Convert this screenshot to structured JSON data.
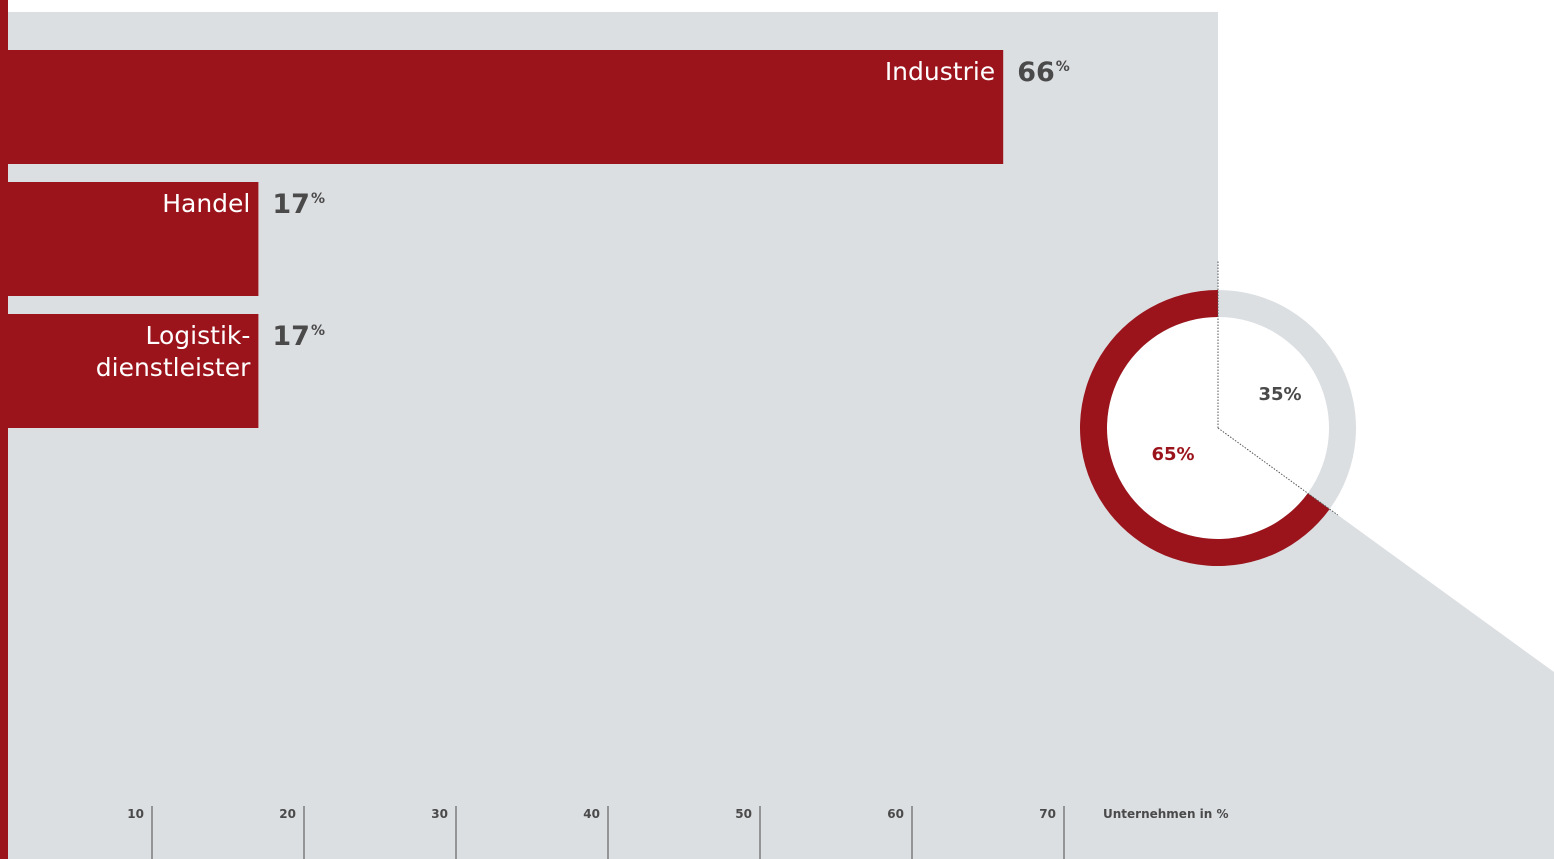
{
  "colors": {
    "bar": "#9b141c",
    "panel": "#dcdfe2",
    "value_text": "#4a4a4a",
    "donut_rest": "#dcdfe2",
    "donut_inner": "#ffffff"
  },
  "chart_data": [
    {
      "type": "bar",
      "orientation": "horizontal",
      "categories": [
        "Industrie",
        "Handel",
        "Logistikdienstleister"
      ],
      "category_lines": [
        [
          "Industrie"
        ],
        [
          "Handel"
        ],
        [
          "Logistik-",
          "dienstleister"
        ]
      ],
      "values": [
        66,
        17,
        17
      ],
      "value_labels": [
        "66",
        "17",
        "17"
      ],
      "value_unit": "%",
      "xlabel": "Unternehmen in %",
      "ylabel": "",
      "xlim": [
        0,
        80
      ],
      "ticks": [
        10,
        20,
        30,
        40,
        50,
        60,
        70
      ],
      "tick_labels": [
        "10",
        "20",
        "30",
        "40",
        "50",
        "60",
        "70"
      ],
      "grid": false
    },
    {
      "type": "pie",
      "donut": true,
      "slices": [
        {
          "value": 35,
          "label": "35%",
          "color": "#dcdfe2"
        },
        {
          "value": 65,
          "label": "65%",
          "color": "#9b141c"
        }
      ]
    }
  ]
}
